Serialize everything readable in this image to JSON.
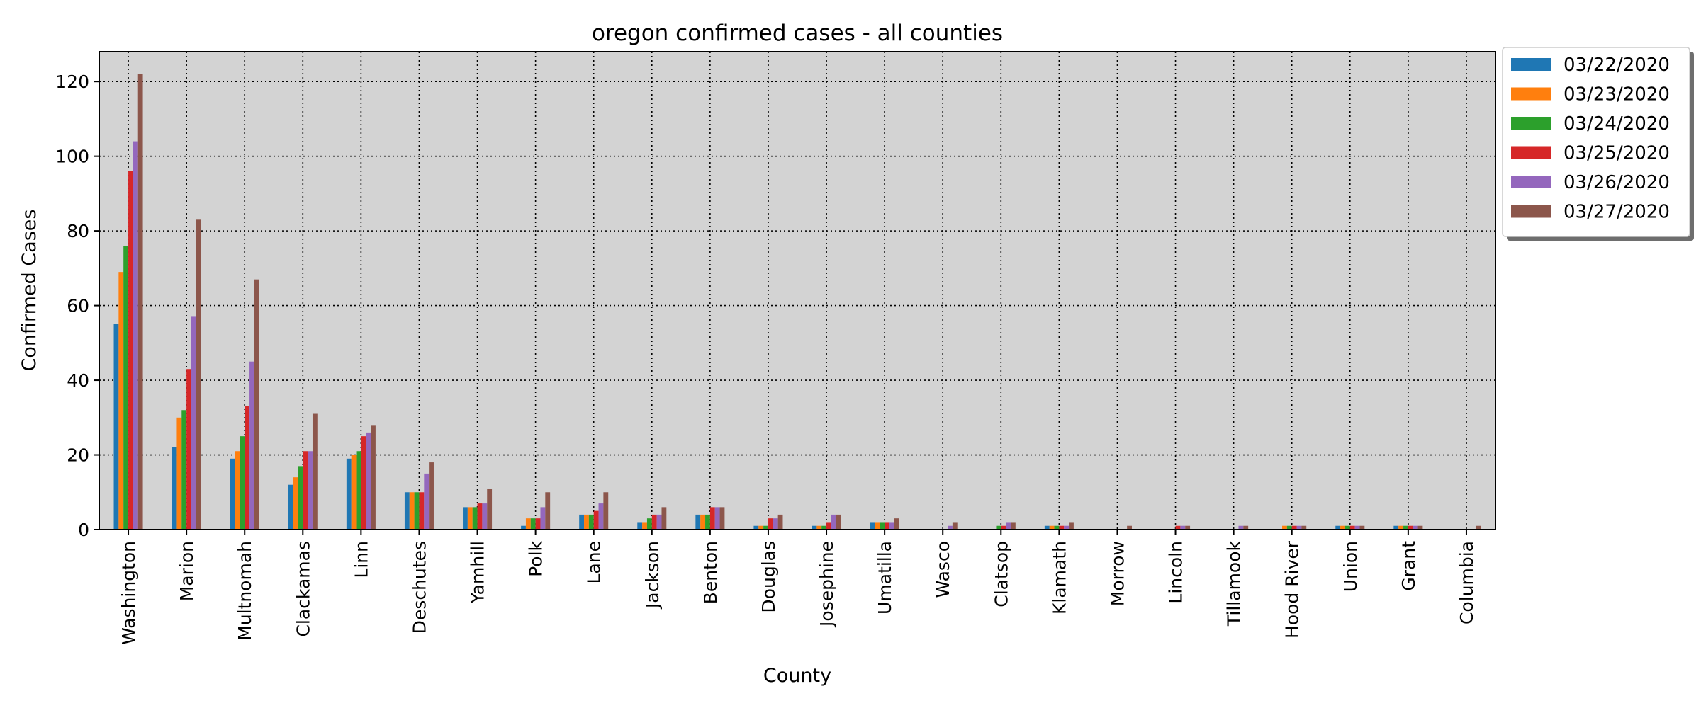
{
  "chart_data": {
    "type": "bar",
    "title": "oregon confirmed cases - all counties",
    "xlabel": "County",
    "ylabel": "Confirmed Cases",
    "ylim": [
      0,
      128
    ],
    "yticks": [
      0,
      20,
      40,
      60,
      80,
      100,
      120
    ],
    "grid": true,
    "legend_position": "outside-top-right",
    "colors": {
      "plot_background": "#d3d3d3",
      "grid": "#000000"
    },
    "categories": [
      "Washington",
      "Marion",
      "Multnomah",
      "Clackamas",
      "Linn",
      "Deschutes",
      "Yamhill",
      "Polk",
      "Lane",
      "Jackson",
      "Benton",
      "Douglas",
      "Josephine",
      "Umatilla",
      "Wasco",
      "Clatsop",
      "Klamath",
      "Morrow",
      "Lincoln",
      "Tillamook",
      "Hood River",
      "Union",
      "Grant",
      "Columbia"
    ],
    "series": [
      {
        "name": "03/22/2020",
        "color": "#1f77b4",
        "values": [
          55,
          22,
          19,
          12,
          19,
          10,
          6,
          1,
          4,
          2,
          4,
          1,
          1,
          2,
          0,
          0,
          1,
          0,
          0,
          0,
          0,
          1,
          1,
          0
        ]
      },
      {
        "name": "03/23/2020",
        "color": "#ff7f0e",
        "values": [
          69,
          30,
          21,
          14,
          20,
          10,
          6,
          3,
          4,
          2,
          4,
          1,
          1,
          2,
          0,
          0,
          1,
          0,
          0,
          0,
          1,
          1,
          1,
          0
        ]
      },
      {
        "name": "03/24/2020",
        "color": "#2ca02c",
        "values": [
          76,
          32,
          25,
          17,
          21,
          10,
          6,
          3,
          4,
          3,
          4,
          1,
          1,
          2,
          0,
          1,
          1,
          0,
          0,
          0,
          1,
          1,
          1,
          0
        ]
      },
      {
        "name": "03/25/2020",
        "color": "#d62728",
        "values": [
          96,
          43,
          33,
          21,
          25,
          10,
          7,
          3,
          5,
          4,
          6,
          3,
          2,
          2,
          0,
          1,
          1,
          0,
          1,
          0,
          1,
          1,
          1,
          0
        ]
      },
      {
        "name": "03/26/2020",
        "color": "#9467bd",
        "values": [
          104,
          57,
          45,
          21,
          26,
          15,
          7,
          6,
          7,
          4,
          6,
          3,
          4,
          2,
          1,
          2,
          1,
          0,
          1,
          1,
          1,
          1,
          1,
          0
        ]
      },
      {
        "name": "03/27/2020",
        "color": "#8c564b",
        "values": [
          122,
          83,
          67,
          31,
          28,
          18,
          11,
          10,
          10,
          6,
          6,
          4,
          4,
          3,
          2,
          2,
          2,
          1,
          1,
          1,
          1,
          1,
          1,
          1
        ]
      }
    ]
  }
}
